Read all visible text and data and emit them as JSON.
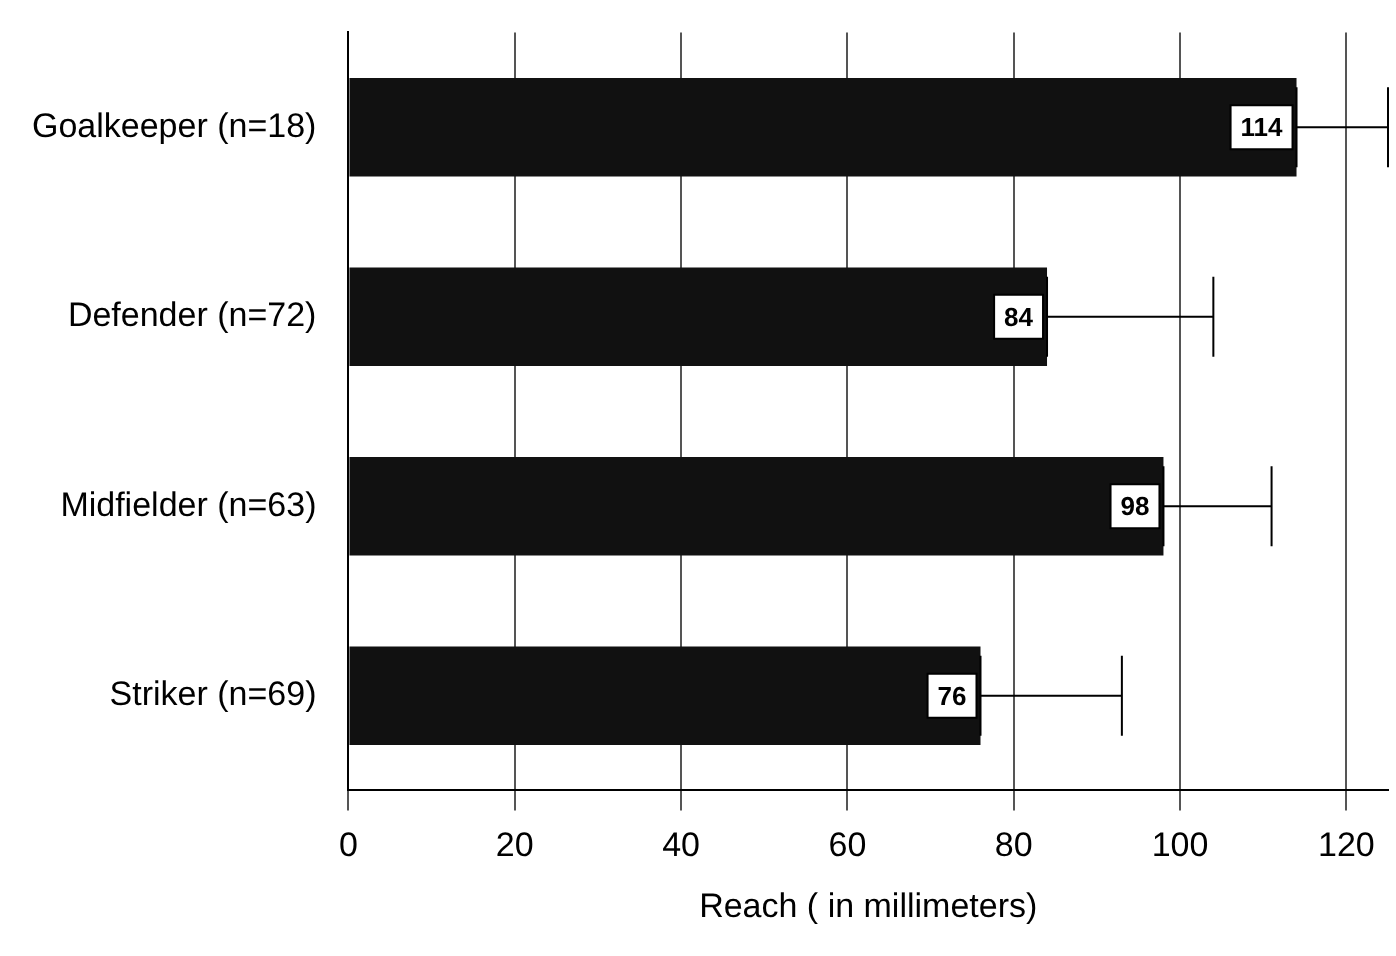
{
  "chart_data": {
    "type": "bar",
    "orientation": "horizontal",
    "xlabel": "Reach ( in millimeters)",
    "categories": [
      "Goalkeeper (n=18)",
      "Defender (n=72)",
      "Midfielder (n=63)",
      "Striker (n=69)"
    ],
    "values": [
      114,
      84,
      98,
      76
    ],
    "color": "#111111",
    "errors": [
      [
        114,
        125
      ],
      [
        84,
        104
      ],
      [
        98,
        111
      ],
      [
        76,
        93
      ]
    ],
    "xlim": [
      0,
      125
    ],
    "xticks": [
      0,
      20,
      40,
      60,
      80,
      100,
      120
    ],
    "grid": "x",
    "legend": false,
    "data_labels": true
  }
}
